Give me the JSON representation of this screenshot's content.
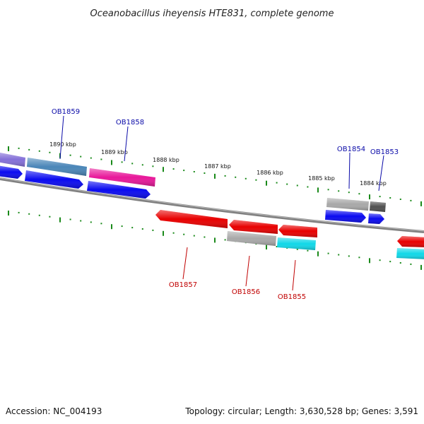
{
  "title": "Oceanobacillus iheyensis HTE831, complete genome",
  "footer": {
    "accession": "Accession: NC_004193",
    "summary": "Topology: circular; Length: 3,630,528 bp; Genes: 3,591"
  },
  "scale_labels": [
    "1890 kbp",
    "1889 kbp",
    "1888 kbp",
    "1887 kbp",
    "1886 kbp",
    "1885 kbp",
    "1884 kbp"
  ],
  "gene_labels_top": [
    "OB1859",
    "OB1858",
    "OB1854",
    "OB1853"
  ],
  "gene_labels_bottom": [
    "OB1857",
    "OB1856",
    "OB1855"
  ],
  "colors": {
    "outer_forward": [
      "#8470d8",
      "#4a86b8",
      "#e8189a",
      "#a8a8a8",
      "#505050"
    ],
    "inner_forward": "#0a0af0",
    "reverse": "#e80000",
    "reverse_secondary": [
      "#a8a8a8",
      "#10d8e8"
    ],
    "backbone": "#808080",
    "ticks": "#1a8a1a",
    "label_top": "#0a0aa8",
    "label_bottom": "#c00000"
  }
}
